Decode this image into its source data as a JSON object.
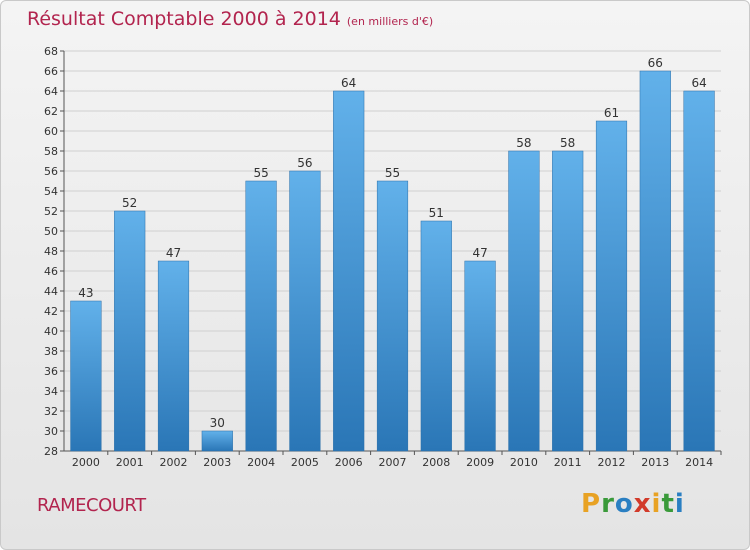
{
  "title": "Résultat Comptable 2000 à 2014",
  "subtitle": "(en milliers d'€)",
  "commune": "RAMECOURT",
  "brand": {
    "letters": [
      "P",
      "r",
      "o",
      "x",
      "i",
      "t",
      "i"
    ],
    "colors": [
      "#e8a224",
      "#3a9a3a",
      "#2a7fc2",
      "#d23a2a",
      "#e8a224",
      "#3a9a3a",
      "#2a7fc2"
    ]
  },
  "colors": {
    "title": "#b2244e",
    "bar_top": "#62b1ea",
    "bar_bottom": "#2a76b6",
    "grid": "#d0d0d0"
  },
  "chart_data": {
    "type": "bar",
    "categories": [
      "2000",
      "2001",
      "2002",
      "2003",
      "2004",
      "2005",
      "2006",
      "2007",
      "2008",
      "2009",
      "2010",
      "2011",
      "2012",
      "2013",
      "2014"
    ],
    "values": [
      43,
      52,
      47,
      30,
      55,
      56,
      64,
      55,
      51,
      47,
      58,
      58,
      61,
      66,
      64
    ],
    "ylim": [
      28,
      68
    ],
    "ytick_step": 2,
    "xlabel": "",
    "ylabel": "",
    "grid": true,
    "data_labels": true
  }
}
